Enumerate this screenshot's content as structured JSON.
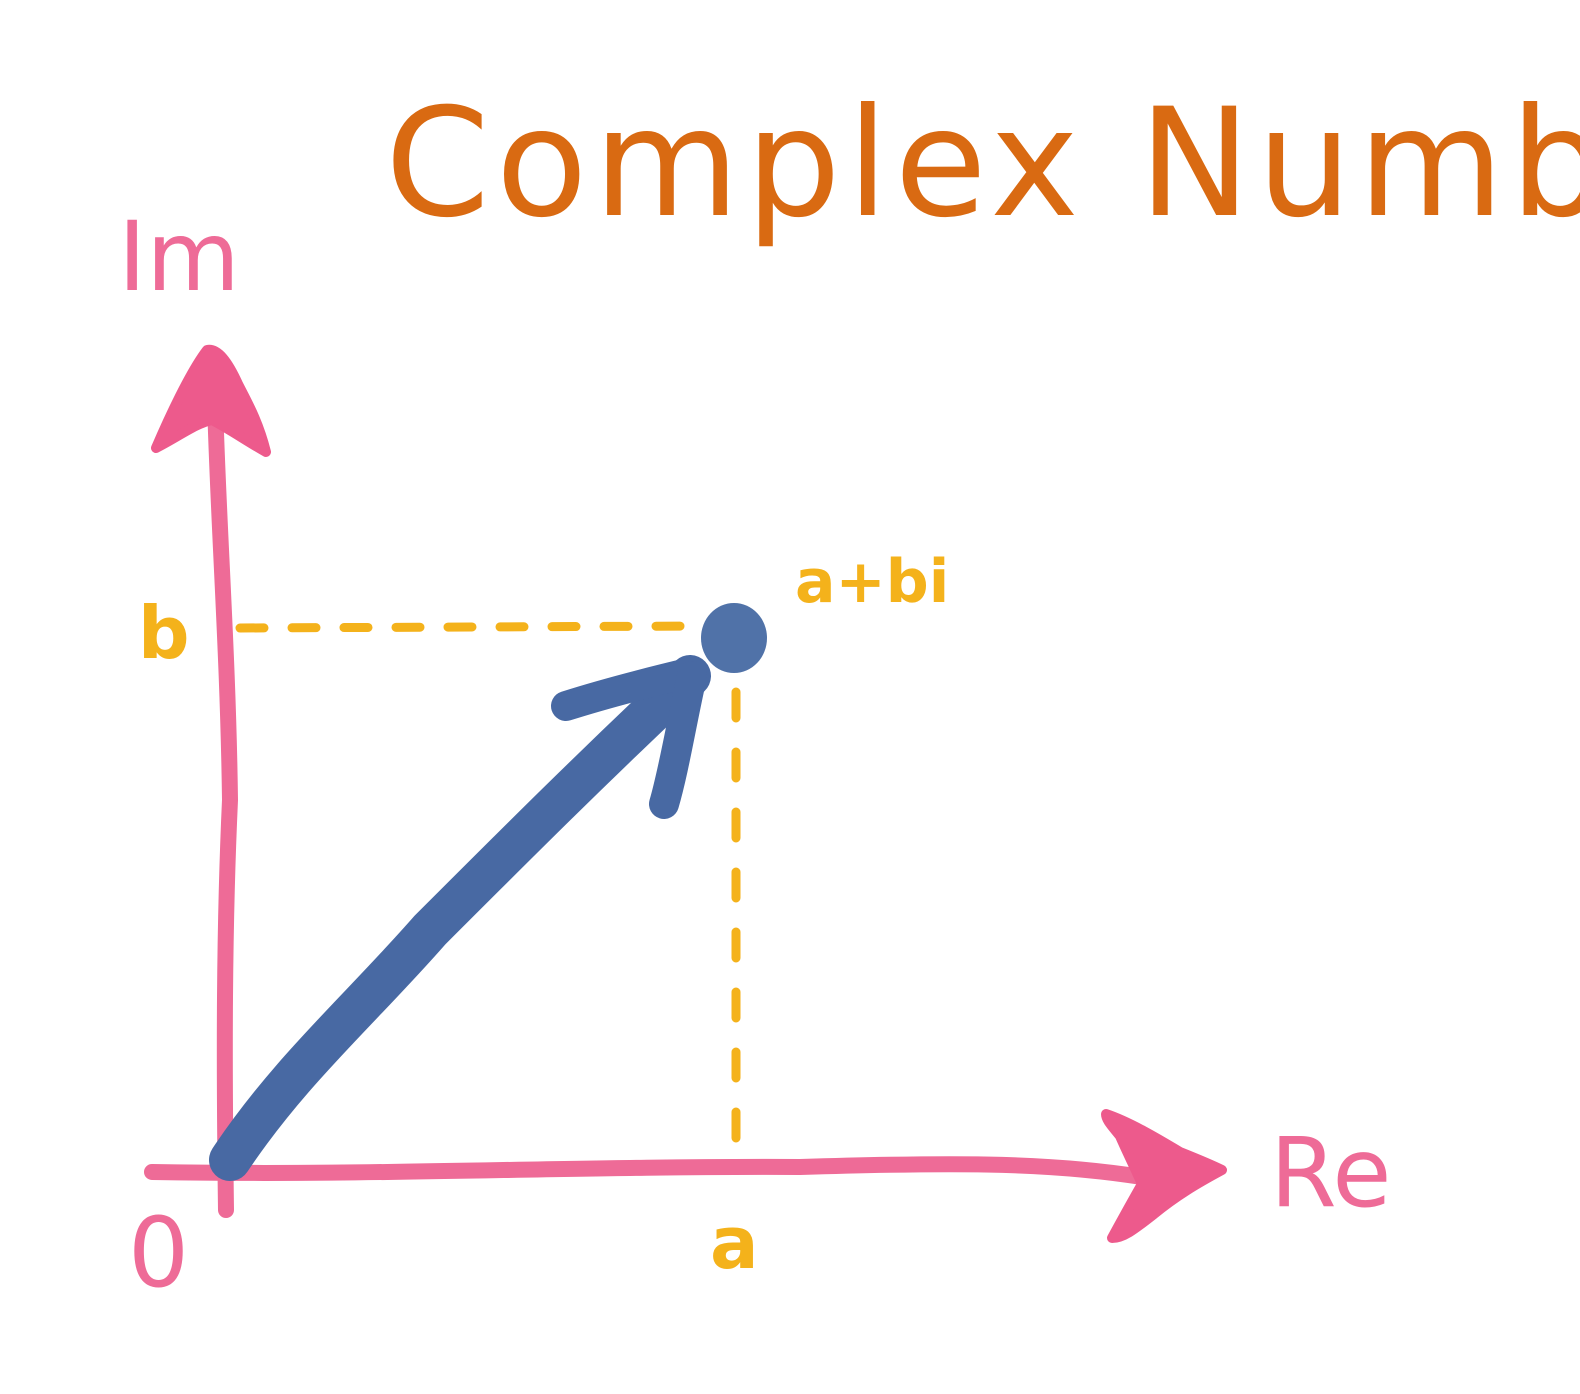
{
  "title": "Complex Numbers",
  "axes": {
    "imaginary_label": "Im",
    "real_label": "Re",
    "origin_label": "0"
  },
  "point": {
    "label": "a+bi",
    "real_tick_label": "a",
    "imag_tick_label": "b"
  },
  "colors": {
    "title": "#d96a12",
    "axis": "#ee5f8f",
    "guide": "#f4b21b",
    "vector": "#4869a3",
    "point": "#5072a8",
    "background": "#ffffff"
  }
}
